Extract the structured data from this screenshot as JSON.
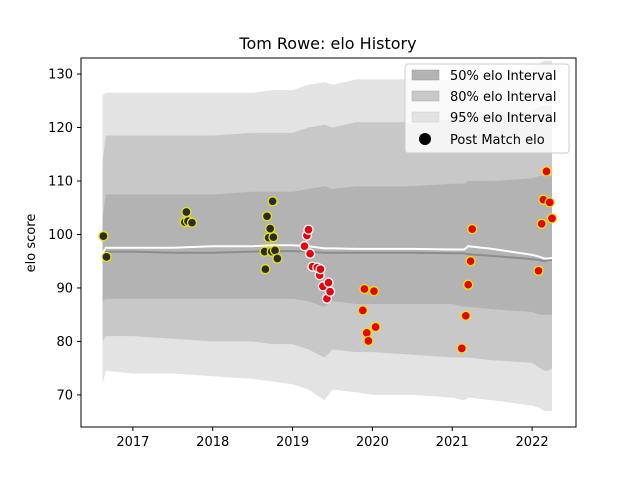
{
  "chart_data": {
    "type": "scatter",
    "title": "Tom Rowe: elo History",
    "xlabel": "",
    "ylabel": "elo score",
    "xlim": [
      2016.35,
      2022.55
    ],
    "ylim": [
      64,
      133
    ],
    "x_ticks": [
      2017,
      2018,
      2019,
      2020,
      2021,
      2022
    ],
    "y_ticks": [
      70,
      80,
      90,
      100,
      110,
      120,
      130
    ],
    "grid": false,
    "legend": {
      "placement": "top-right",
      "entries": [
        "50% elo Interval",
        "80% elo Interval",
        "95% elo Interval",
        "Post Match elo"
      ]
    },
    "colors": {
      "band_50": "#b3b3b3",
      "band_80": "#c8c8c8",
      "band_95": "#e3e3e3",
      "mean_line": "#ffffff",
      "median_line": "#8c8c8c",
      "point_dark": "#2b2b2b",
      "point_red": "#e8000b",
      "point_edge_yellow": "#e6e600",
      "point_edge_white": "#ffffff"
    },
    "bands": {
      "x": [
        2016.62,
        2016.66,
        2017.0,
        2017.5,
        2018.0,
        2018.5,
        2018.75,
        2019.0,
        2019.2,
        2019.4,
        2019.5,
        2019.8,
        2020.0,
        2020.5,
        2021.0,
        2021.15,
        2021.2,
        2021.5,
        2022.0,
        2022.1,
        2022.15,
        2022.2,
        2022.25
      ],
      "band_95_upper": [
        126,
        126.5,
        126.5,
        126.5,
        126.5,
        126.5,
        127,
        127,
        128,
        128.5,
        128,
        129,
        129,
        129,
        129,
        129.5,
        129.5,
        130,
        131,
        132,
        132.5,
        132.5,
        132.5
      ],
      "band_95_lower": [
        72,
        74.5,
        74,
        74,
        73.5,
        73,
        72.5,
        72,
        71,
        69,
        71,
        70.5,
        70,
        70,
        69.5,
        69,
        69.5,
        69,
        68,
        67.5,
        67,
        67,
        67
      ],
      "band_80_upper": [
        113.5,
        118.5,
        118.5,
        118.5,
        118.5,
        119,
        119,
        119,
        120,
        120.5,
        120,
        121,
        121,
        121,
        121.5,
        121.5,
        122,
        122.5,
        123,
        124,
        124,
        124,
        124
      ],
      "band_80_lower": [
        80,
        81,
        81,
        80.5,
        80,
        80,
        79.5,
        79.5,
        78.5,
        77,
        78.5,
        78,
        78,
        77.5,
        77,
        77,
        77,
        76.5,
        76,
        75,
        74.5,
        74.5,
        75
      ],
      "band_50_upper": [
        103,
        107.5,
        107.5,
        107.5,
        107.5,
        108,
        108,
        108,
        108.5,
        109,
        108.5,
        109,
        109,
        109,
        109.5,
        109.5,
        110,
        110,
        110.5,
        111,
        111,
        111,
        111
      ],
      "band_50_lower": [
        87.5,
        88,
        88,
        88,
        88,
        88,
        88,
        88,
        87.5,
        86.5,
        87.5,
        87,
        87,
        87,
        87,
        86.5,
        86.5,
        86,
        85.5,
        85,
        85,
        85,
        85
      ],
      "mean": [
        96.5,
        97.5,
        97.5,
        97.5,
        97.8,
        97.8,
        98,
        98,
        97.8,
        97.4,
        97.4,
        97.3,
        97.3,
        97.3,
        97.2,
        97.2,
        97.8,
        97.3,
        96.2,
        95.8,
        95.5,
        95.5,
        95.6
      ],
      "median": [
        96.5,
        96.8,
        96.8,
        96.6,
        96.6,
        96.8,
        96.9,
        96.9,
        96.8,
        96.6,
        96.6,
        96.6,
        96.6,
        96.6,
        96.5,
        96.5,
        96.3,
        96,
        95.4,
        95.2,
        95,
        95.2,
        95.3
      ]
    },
    "points": [
      {
        "x": 2016.63,
        "y": 99.7,
        "fill": "dark"
      },
      {
        "x": 2016.67,
        "y": 95.8,
        "fill": "dark"
      },
      {
        "x": 2017.65,
        "y": 102.3,
        "fill": "dark"
      },
      {
        "x": 2017.67,
        "y": 104.2,
        "fill": "dark"
      },
      {
        "x": 2017.69,
        "y": 102.5,
        "fill": "dark"
      },
      {
        "x": 2017.74,
        "y": 102.2,
        "fill": "dark"
      },
      {
        "x": 2018.65,
        "y": 96.8,
        "fill": "dark"
      },
      {
        "x": 2018.66,
        "y": 93.5,
        "fill": "dark"
      },
      {
        "x": 2018.68,
        "y": 103.4,
        "fill": "dark"
      },
      {
        "x": 2018.7,
        "y": 99.4,
        "fill": "dark"
      },
      {
        "x": 2018.72,
        "y": 101.1,
        "fill": "dark"
      },
      {
        "x": 2018.74,
        "y": 96.8,
        "fill": "dark"
      },
      {
        "x": 2018.75,
        "y": 106.2,
        "fill": "dark"
      },
      {
        "x": 2018.76,
        "y": 99.5,
        "fill": "dark"
      },
      {
        "x": 2018.78,
        "y": 97.0,
        "fill": "dark"
      },
      {
        "x": 2018.81,
        "y": 95.5,
        "fill": "dark"
      },
      {
        "x": 2019.15,
        "y": 97.8,
        "fill": "red",
        "edge": "white"
      },
      {
        "x": 2019.18,
        "y": 99.8,
        "fill": "red",
        "edge": "white"
      },
      {
        "x": 2019.2,
        "y": 100.9,
        "fill": "red",
        "edge": "white"
      },
      {
        "x": 2019.22,
        "y": 96.4,
        "fill": "red",
        "edge": "white"
      },
      {
        "x": 2019.25,
        "y": 94.0,
        "fill": "red",
        "edge": "white"
      },
      {
        "x": 2019.31,
        "y": 93.8,
        "fill": "red",
        "edge": "white"
      },
      {
        "x": 2019.34,
        "y": 92.4,
        "fill": "red",
        "edge": "white"
      },
      {
        "x": 2019.35,
        "y": 93.5,
        "fill": "red",
        "edge": "white"
      },
      {
        "x": 2019.38,
        "y": 90.3,
        "fill": "red",
        "edge": "white"
      },
      {
        "x": 2019.43,
        "y": 88.0,
        "fill": "red",
        "edge": "white"
      },
      {
        "x": 2019.45,
        "y": 91.0,
        "fill": "red",
        "edge": "white"
      },
      {
        "x": 2019.47,
        "y": 89.3,
        "fill": "red",
        "edge": "white"
      },
      {
        "x": 2019.88,
        "y": 85.8,
        "fill": "red"
      },
      {
        "x": 2019.9,
        "y": 89.8,
        "fill": "red"
      },
      {
        "x": 2019.93,
        "y": 81.6,
        "fill": "red"
      },
      {
        "x": 2019.95,
        "y": 80.1,
        "fill": "red"
      },
      {
        "x": 2020.02,
        "y": 89.4,
        "fill": "red"
      },
      {
        "x": 2020.04,
        "y": 82.7,
        "fill": "red"
      },
      {
        "x": 2021.12,
        "y": 78.7,
        "fill": "red"
      },
      {
        "x": 2021.17,
        "y": 84.8,
        "fill": "red"
      },
      {
        "x": 2021.2,
        "y": 90.6,
        "fill": "red"
      },
      {
        "x": 2021.23,
        "y": 95.0,
        "fill": "red"
      },
      {
        "x": 2021.25,
        "y": 101.0,
        "fill": "red"
      },
      {
        "x": 2022.08,
        "y": 93.2,
        "fill": "red"
      },
      {
        "x": 2022.12,
        "y": 102.0,
        "fill": "red"
      },
      {
        "x": 2022.14,
        "y": 106.5,
        "fill": "red"
      },
      {
        "x": 2022.18,
        "y": 111.8,
        "fill": "red"
      },
      {
        "x": 2022.22,
        "y": 106.0,
        "fill": "red"
      },
      {
        "x": 2022.25,
        "y": 103.0,
        "fill": "red"
      }
    ]
  }
}
